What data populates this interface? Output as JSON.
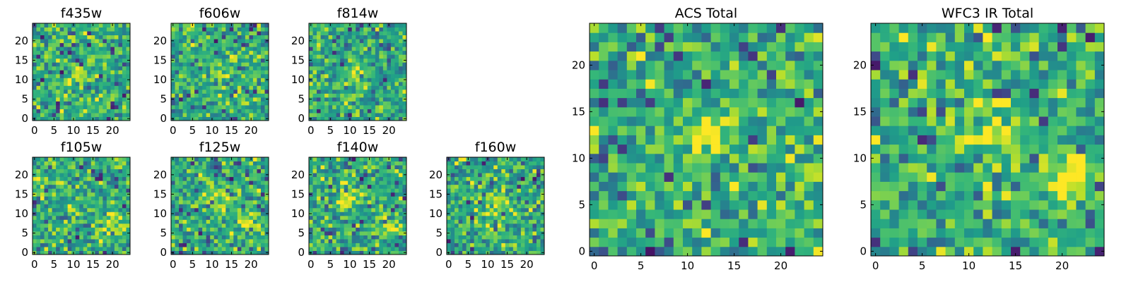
{
  "chart_data": [
    {
      "type": "heatmap",
      "title": "f435w",
      "colormap": "viridis",
      "x_range": [
        0,
        24
      ],
      "y_range": [
        0,
        24
      ],
      "grid_size": 25,
      "seed": 11,
      "x_tick_labels": [
        "0",
        "5",
        "10",
        "15",
        "20"
      ],
      "y_tick_labels": [
        "0",
        "5",
        "10",
        "15",
        "20"
      ],
      "blobs": [
        {
          "x": 12,
          "y": 11,
          "sigma": 1.5,
          "amp": 0.35
        }
      ]
    },
    {
      "type": "heatmap",
      "title": "f606w",
      "colormap": "viridis",
      "x_range": [
        0,
        24
      ],
      "y_range": [
        0,
        24
      ],
      "grid_size": 25,
      "seed": 23,
      "x_tick_labels": [
        "0",
        "5",
        "10",
        "15",
        "20"
      ],
      "y_tick_labels": [
        "0",
        "5",
        "10",
        "15",
        "20"
      ],
      "blobs": [
        {
          "x": 12,
          "y": 12,
          "sigma": 1.5,
          "amp": 0.4
        }
      ]
    },
    {
      "type": "heatmap",
      "title": "f814w",
      "colormap": "viridis",
      "x_range": [
        0,
        24
      ],
      "y_range": [
        0,
        24
      ],
      "grid_size": 25,
      "seed": 37,
      "x_tick_labels": [
        "0",
        "5",
        "10",
        "15",
        "20"
      ],
      "y_tick_labels": [
        "0",
        "5",
        "10",
        "15",
        "20"
      ],
      "blobs": [
        {
          "x": 12,
          "y": 12,
          "sigma": 1.5,
          "amp": 0.35
        }
      ]
    },
    {
      "type": "heatmap",
      "title": "f105w",
      "colormap": "viridis",
      "x_range": [
        0,
        24
      ],
      "y_range": [
        0,
        24
      ],
      "grid_size": 25,
      "seed": 41,
      "x_tick_labels": [
        "0",
        "5",
        "10",
        "15",
        "20"
      ],
      "y_tick_labels": [
        "0",
        "5",
        "10",
        "15",
        "20"
      ],
      "blobs": [
        {
          "x": 20,
          "y": 7,
          "sigma": 2.0,
          "amp": 0.3
        }
      ]
    },
    {
      "type": "heatmap",
      "title": "f125w",
      "colormap": "viridis",
      "x_range": [
        0,
        24
      ],
      "y_range": [
        0,
        24
      ],
      "grid_size": 25,
      "seed": 53,
      "x_tick_labels": [
        "0",
        "5",
        "10",
        "15",
        "20"
      ],
      "y_tick_labels": [
        "0",
        "5",
        "10",
        "15",
        "20"
      ],
      "blobs": [
        {
          "x": 12,
          "y": 14,
          "sigma": 2.0,
          "amp": 0.3
        },
        {
          "x": 20,
          "y": 8,
          "sigma": 2.0,
          "amp": 0.3
        }
      ]
    },
    {
      "type": "heatmap",
      "title": "f140w",
      "colormap": "viridis",
      "x_range": [
        0,
        24
      ],
      "y_range": [
        0,
        24
      ],
      "grid_size": 25,
      "seed": 67,
      "x_tick_labels": [
        "0",
        "5",
        "10",
        "15",
        "20"
      ],
      "y_tick_labels": [
        "0",
        "5",
        "10",
        "15",
        "20"
      ],
      "blobs": [
        {
          "x": 10,
          "y": 14,
          "sigma": 2.0,
          "amp": 0.3
        },
        {
          "x": 20,
          "y": 8,
          "sigma": 2.0,
          "amp": 0.25
        }
      ]
    },
    {
      "type": "heatmap",
      "title": "f160w",
      "colormap": "viridis",
      "x_range": [
        0,
        24
      ],
      "y_range": [
        0,
        24
      ],
      "grid_size": 25,
      "seed": 79,
      "x_tick_labels": [
        "0",
        "5",
        "10",
        "15",
        "20"
      ],
      "y_tick_labels": [
        "0",
        "5",
        "10",
        "15",
        "20"
      ],
      "blobs": [
        {
          "x": 13,
          "y": 12,
          "sigma": 2.0,
          "amp": 0.3
        }
      ]
    },
    {
      "type": "heatmap",
      "title": "ACS Total",
      "colormap": "viridis",
      "x_range": [
        0,
        24
      ],
      "y_range": [
        0,
        24
      ],
      "grid_size": 25,
      "seed": 97,
      "x_tick_labels": [
        "0",
        "5",
        "10",
        "15",
        "20"
      ],
      "y_tick_labels": [
        "0",
        "5",
        "10",
        "15",
        "20"
      ],
      "blobs": [
        {
          "x": 12,
          "y": 12,
          "sigma": 1.5,
          "amp": 0.5
        }
      ]
    },
    {
      "type": "heatmap",
      "title": "WFC3 IR Total",
      "colormap": "viridis",
      "x_range": [
        0,
        24
      ],
      "y_range": [
        0,
        24
      ],
      "grid_size": 25,
      "seed": 113,
      "x_tick_labels": [
        "0",
        "5",
        "10",
        "15",
        "20"
      ],
      "y_tick_labels": [
        "0",
        "5",
        "10",
        "15",
        "20"
      ],
      "blobs": [
        {
          "x": 12,
          "y": 14,
          "sigma": 2.0,
          "amp": 0.35
        },
        {
          "x": 21,
          "y": 8,
          "sigma": 2.0,
          "amp": 0.4
        },
        {
          "x": 15,
          "y": 21,
          "sigma": 1.0,
          "amp": 0.3
        }
      ]
    }
  ]
}
